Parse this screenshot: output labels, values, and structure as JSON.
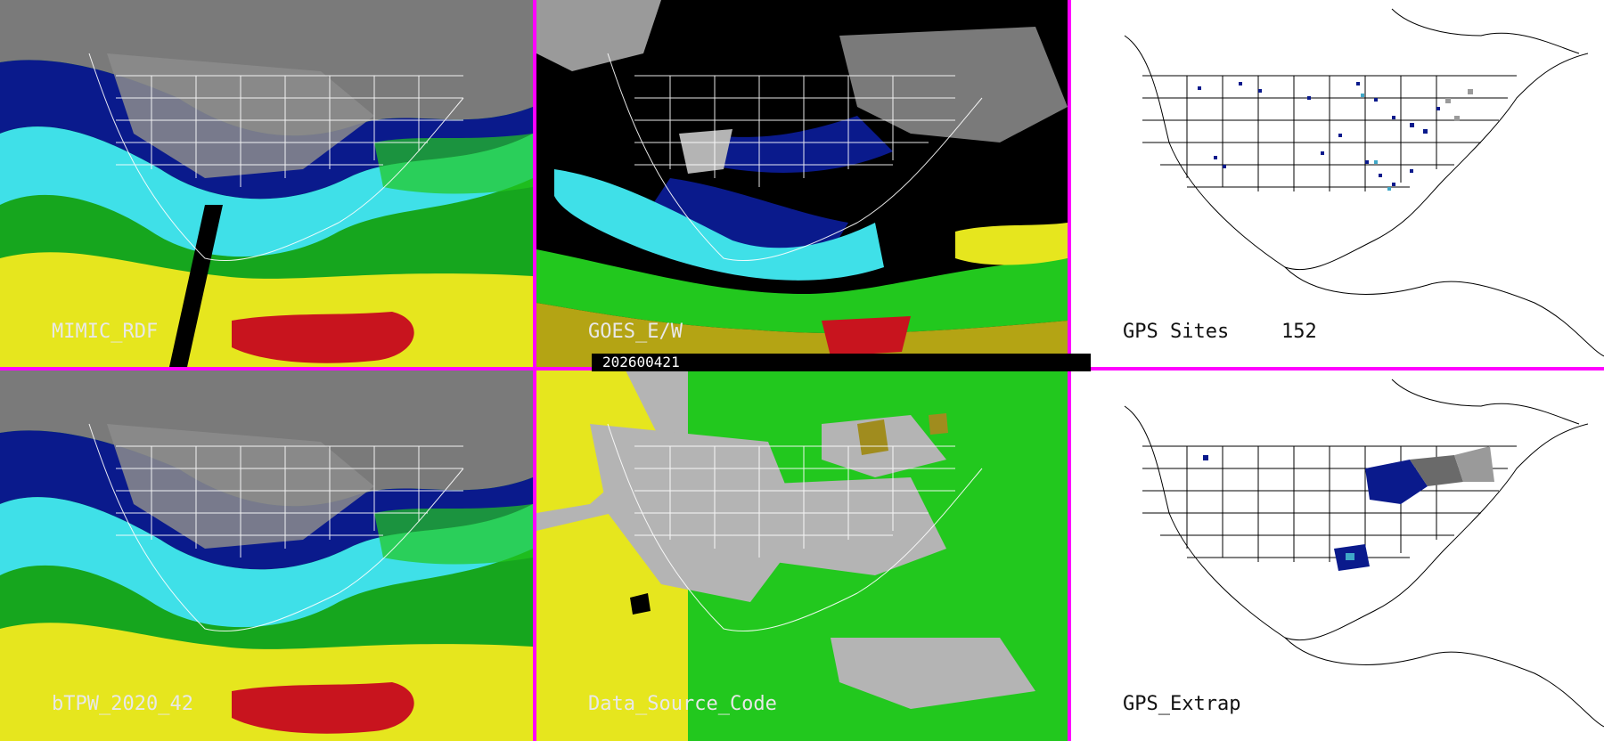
{
  "panels": [
    {
      "id": "p1",
      "label": "MIMIC_RDF",
      "style": "mimic"
    },
    {
      "id": "p2",
      "label": "GOES_E/W",
      "style": "goes"
    },
    {
      "id": "p3",
      "label": "GPS Sites",
      "count": "152",
      "style": "gps"
    },
    {
      "id": "p4",
      "label": "bTPW_2020_42",
      "style": "mimic"
    },
    {
      "id": "p5",
      "label": "Data_Source_Code",
      "style": "source"
    },
    {
      "id": "p6",
      "label": "GPS_Extrap",
      "style": "gps"
    }
  ],
  "timestamp": "202600421",
  "colors": {
    "divider": "#ff00ff",
    "navy": "#0a1a8c",
    "blue": "#1f3fd0",
    "cyan": "#3fe0e8",
    "green": "#22c81e",
    "yellow": "#e6e61e",
    "orange": "#d87a1e",
    "red": "#c8141e",
    "gray": "#b4b4b4",
    "black": "#000000"
  }
}
